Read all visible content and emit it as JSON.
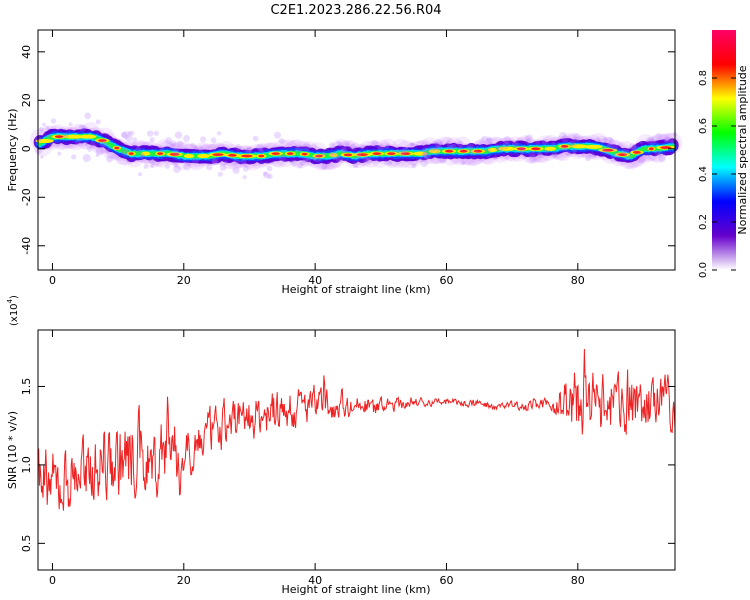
{
  "title": "C2E1.2023.286.22.56.R04",
  "chart_data": [
    {
      "type": "heatmap",
      "title": "C2E1.2023.286.22.56.R04",
      "xlabel": "Height of straight line (km)",
      "ylabel": "Frequency (Hz)",
      "xlim": [
        -2.2,
        94.8
      ],
      "ylim": [
        -50,
        49
      ],
      "xticks": [
        0,
        20,
        40,
        60,
        80
      ],
      "yticks": [
        40,
        20,
        0,
        -20,
        -40
      ],
      "ridge": {
        "x": [
          -2,
          0,
          2,
          4,
          6,
          8,
          10,
          12,
          14,
          16,
          18,
          20,
          22,
          24,
          26,
          28,
          30,
          32,
          34,
          36,
          38,
          40,
          42,
          44,
          46,
          48,
          50,
          52,
          54,
          56,
          58,
          60,
          62,
          64,
          66,
          68,
          70,
          72,
          74,
          76,
          78,
          80,
          82,
          84,
          86,
          88,
          90,
          92,
          94.8
        ],
        "freq": [
          2,
          5,
          5,
          5,
          5,
          3,
          0,
          -2,
          -2,
          -2,
          -2,
          -3,
          -3,
          -3,
          -2,
          -3,
          -3,
          -3,
          -2,
          -2,
          -2,
          -3,
          -3,
          -2,
          -3,
          -2,
          -2,
          -2,
          -2,
          -2,
          -1,
          -1,
          -1,
          -1,
          -1,
          0,
          0,
          0,
          0,
          0,
          1,
          1,
          1,
          0,
          -2,
          -3,
          0,
          0,
          1
        ]
      },
      "colorbar": {
        "label": "Normalized spectral amplitude",
        "range": [
          0.0,
          1.0
        ],
        "ticks": [
          0.0,
          0.2,
          0.4,
          0.6,
          0.8
        ],
        "tick_labels": [
          "0.0",
          "0.2",
          "0.4",
          "0.6",
          "0.8"
        ],
        "colormap": [
          "#ffffff",
          "#6600cc",
          "#0000ff",
          "#00ffff",
          "#00ff00",
          "#ffff00",
          "#ff0000",
          "#ff0066"
        ]
      }
    },
    {
      "type": "line",
      "xlabel": "Height of straight line (km)",
      "ylabel": "SNR (10 * v/v)",
      "y_multiplier": "(x10",
      "y_multiplier_exp": "4",
      "xlim": [
        -2.2,
        94.8
      ],
      "ylim": [
        0.33,
        1.86
      ],
      "xticks": [
        0,
        20,
        40,
        60,
        80
      ],
      "yticks": [
        0.5,
        1.0,
        1.5
      ],
      "ytick_labels": [
        "0.5",
        "1.0",
        "1.5"
      ],
      "color": "#ee2222",
      "envelope": {
        "x": [
          -2,
          0,
          4,
          8,
          12,
          16,
          18,
          19,
          20,
          24,
          28,
          32,
          36,
          40,
          44,
          48,
          52,
          56,
          60,
          64,
          68,
          72,
          76,
          78,
          80,
          84,
          88,
          92,
          94.8
        ],
        "mean": [
          0.95,
          0.85,
          0.95,
          1.0,
          1.05,
          1.0,
          1.3,
          0.85,
          1.1,
          1.2,
          1.3,
          1.32,
          1.35,
          1.38,
          1.38,
          1.37,
          1.38,
          1.4,
          1.4,
          1.39,
          1.38,
          1.38,
          1.38,
          1.38,
          1.4,
          1.38,
          1.38,
          1.38,
          1.38
        ],
        "amp": [
          0.3,
          0.35,
          0.3,
          0.35,
          0.4,
          0.35,
          0.4,
          0.3,
          0.25,
          0.22,
          0.22,
          0.2,
          0.2,
          0.18,
          0.12,
          0.1,
          0.06,
          0.04,
          0.04,
          0.04,
          0.04,
          0.04,
          0.06,
          0.25,
          0.35,
          0.3,
          0.3,
          0.25,
          0.25
        ]
      }
    }
  ]
}
